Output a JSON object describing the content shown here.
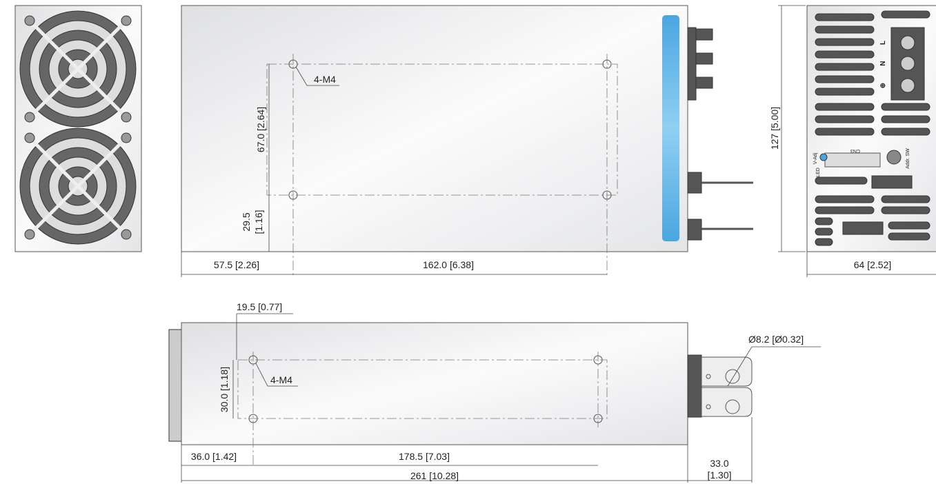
{
  "top_view": {
    "hole_label": "4-M4",
    "hole_spacing_y": "67.0 [2.64]",
    "edge_y": [
      "29.5",
      "[1.16]"
    ],
    "edge_x": "57.5 [2.26]",
    "hole_spacing_x": "162.0 [6.38]"
  },
  "end_view": {
    "height": "127 [5.00]",
    "width": "64 [2.52]",
    "terminals": [
      "L",
      "N",
      "⊕"
    ],
    "labels": [
      "V-Adj",
      "LED",
      "CN3",
      "Addr. SW"
    ]
  },
  "side_view": {
    "hole_label": "4-M4",
    "edge_y": "19.5 [0.77]",
    "hole_spacing_y": "30.0 [1.18]",
    "edge_x": "36.0 [1.42]",
    "hole_spacing_x": "178.5 [7.03]",
    "length": "261 [10.28]",
    "bolt_diameter": "Ø8.2 [Ø0.32]",
    "bolt_length": [
      "33.0",
      "[1.30]"
    ]
  }
}
